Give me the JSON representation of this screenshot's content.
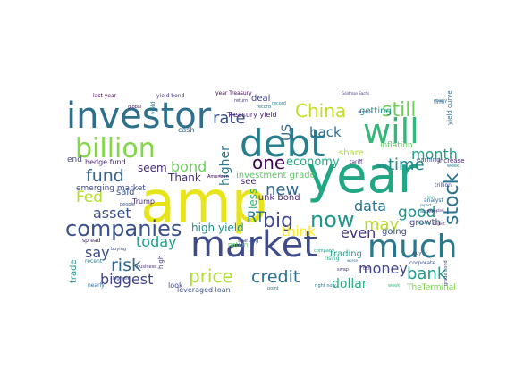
{
  "word_cloud": {
    "words": [
      {
        "text": "amp",
        "color": "#e7e419"
      },
      {
        "text": "year",
        "color": "#22a785"
      },
      {
        "text": "market",
        "color": "#3e4a89"
      },
      {
        "text": "investor",
        "color": "#2e6f8e"
      },
      {
        "text": "debt",
        "color": "#277f8e"
      },
      {
        "text": "billion",
        "color": "#86d549"
      },
      {
        "text": "will",
        "color": "#35b779"
      },
      {
        "text": "much",
        "color": "#2a788e"
      },
      {
        "text": "companies",
        "color": "#3b518b"
      },
      {
        "text": "China",
        "color": "#c2df23"
      },
      {
        "text": "still",
        "color": "#6ece58"
      },
      {
        "text": "stock",
        "color": "#2c728e"
      },
      {
        "text": "now",
        "color": "#1f978b"
      },
      {
        "text": "risk",
        "color": "#31688e"
      },
      {
        "text": "big",
        "color": "#3e4989"
      },
      {
        "text": "credit",
        "color": "#2c728e"
      },
      {
        "text": "price",
        "color": "#addc30"
      },
      {
        "text": "bank",
        "color": "#1f9e89"
      },
      {
        "text": "fund",
        "color": "#33638d"
      },
      {
        "text": "bond",
        "color": "#6ece58"
      },
      {
        "text": "time",
        "color": "#25848e"
      },
      {
        "text": "new",
        "color": "#31688e"
      },
      {
        "text": "one",
        "color": "#440154"
      },
      {
        "text": "rate",
        "color": "#3b528b"
      },
      {
        "text": "good",
        "color": "#21918c"
      },
      {
        "text": "money",
        "color": "#404688"
      },
      {
        "text": "may",
        "color": "#b5de2b"
      },
      {
        "text": "data",
        "color": "#2c728e"
      },
      {
        "text": "month",
        "color": "#1f9e89"
      },
      {
        "text": "today",
        "color": "#1f9e89"
      },
      {
        "text": "asset",
        "color": "#3b528b"
      },
      {
        "text": "Fed",
        "color": "#b5de2b"
      },
      {
        "text": "say",
        "color": "#3e4a89"
      },
      {
        "text": "biggest",
        "color": "#414487"
      },
      {
        "text": "think",
        "color": "#fde725"
      },
      {
        "text": "even",
        "color": "#46337e"
      },
      {
        "text": "dollar",
        "color": "#29af7f"
      },
      {
        "text": "higher",
        "color": "#2a788e"
      },
      {
        "text": "seem",
        "color": "#472d7b"
      },
      {
        "text": "back",
        "color": "#2e6e8e"
      },
      {
        "text": "US",
        "color": "#31688e"
      },
      {
        "text": "economy",
        "color": "#22a884"
      },
      {
        "text": "RT",
        "color": "#2c728e"
      },
      {
        "text": "high yield",
        "color": "#21918c"
      },
      {
        "text": "junk bond",
        "color": "#472c7a"
      },
      {
        "text": "investment grade",
        "color": "#5ec962"
      },
      {
        "text": "emerging market",
        "color": "#3e4989"
      },
      {
        "text": "hedge fund",
        "color": "#482878"
      },
      {
        "text": "Treasury yield",
        "color": "#482475"
      },
      {
        "text": "leveraged loan",
        "color": "#3b528b"
      },
      {
        "text": "TheTerminal",
        "color": "#7ad151"
      },
      {
        "text": "Thank",
        "color": "#472d7b"
      },
      {
        "text": "said",
        "color": "#38598c"
      },
      {
        "text": "see",
        "color": "#481f70"
      },
      {
        "text": "deal",
        "color": "#3f4788"
      },
      {
        "text": "cash",
        "color": "#31688e"
      },
      {
        "text": "getting",
        "color": "#21918c"
      },
      {
        "text": "share",
        "color": "#addc30"
      },
      {
        "text": "inflation",
        "color": "#5ec962"
      },
      {
        "text": "going",
        "color": "#3b528b"
      },
      {
        "text": "trading",
        "color": "#1f9e89"
      },
      {
        "text": "growth",
        "color": "#3e4a89"
      },
      {
        "text": "less",
        "color": "#35b779"
      },
      {
        "text": "trade",
        "color": "#21918c"
      },
      {
        "text": "end",
        "color": "#414487"
      },
      {
        "text": "look",
        "color": "#3e4989"
      },
      {
        "text": "Trump",
        "color": "#482878"
      },
      {
        "text": "last year",
        "color": "#440154"
      },
      {
        "text": "year Treasury",
        "color": "#450559"
      },
      {
        "text": "yield bond",
        "color": "#46327e"
      },
      {
        "text": "yield curve",
        "color": "#2e6e8e"
      },
      {
        "text": "earning",
        "color": "#3b528b"
      },
      {
        "text": "increase",
        "color": "#482979"
      },
      {
        "text": "first",
        "color": "#31688e"
      },
      {
        "text": "trillion",
        "color": "#3f4889"
      },
      {
        "text": "analyst",
        "color": "#31688e"
      },
      {
        "text": "global",
        "color": "#481467"
      },
      {
        "text": "corporate",
        "color": "#3b528b"
      },
      {
        "text": "right now",
        "color": "#2c728e"
      },
      {
        "text": "week",
        "color": "#35b779"
      },
      {
        "text": "point",
        "color": "#2a788e"
      },
      {
        "text": "firm",
        "color": "#39568c"
      },
      {
        "text": "record",
        "color": "#277f8e"
      },
      {
        "text": "return",
        "color": "#443983"
      },
      {
        "text": "spread",
        "color": "#482475"
      },
      {
        "text": "recent",
        "color": "#27808e"
      },
      {
        "text": "nation",
        "color": "#5ec962"
      },
      {
        "text": "buy",
        "color": "#3e4a89"
      },
      {
        "text": "company",
        "color": "#20a386"
      },
      {
        "text": "people",
        "color": "#3d4d8a"
      },
      {
        "text": "many",
        "color": "#2e6e8e"
      },
      {
        "text": "grade bond",
        "color": "#3b528b"
      },
      {
        "text": "nearly",
        "color": "#31688e"
      },
      {
        "text": "American",
        "color": "#440154"
      },
      {
        "text": "starting",
        "color": "#3e4a89"
      },
      {
        "text": "tariff",
        "color": "#482677"
      },
      {
        "text": "Goldman Sachs",
        "color": "#46337e"
      },
      {
        "text": "almost",
        "color": "#38598c"
      },
      {
        "text": "week",
        "color": "#26828e"
      },
      {
        "text": "rising",
        "color": "#22a884"
      },
      {
        "text": "another",
        "color": "#31688e"
      },
      {
        "text": "expected",
        "color": "#482475"
      },
      {
        "text": "report",
        "color": "#2c728e"
      },
      {
        "text": "buying",
        "color": "#3e4989"
      },
      {
        "text": "business",
        "color": "#472d7b"
      },
      {
        "text": "record",
        "color": "#2a788e"
      },
      {
        "text": "bought",
        "color": "#21918c"
      },
      {
        "text": "largest",
        "color": "#482878"
      },
      {
        "text": "swap",
        "color": "#414487"
      },
      {
        "text": "highest",
        "color": "#3b528b"
      },
      {
        "text": "low",
        "color": "#35b779"
      },
      {
        "text": "fact",
        "color": "#481f70"
      },
      {
        "text": "worse",
        "color": "#31688e"
      },
      {
        "text": "high",
        "color": "#46327e"
      },
      {
        "text": "yield",
        "color": "#2c728e"
      }
    ]
  }
}
